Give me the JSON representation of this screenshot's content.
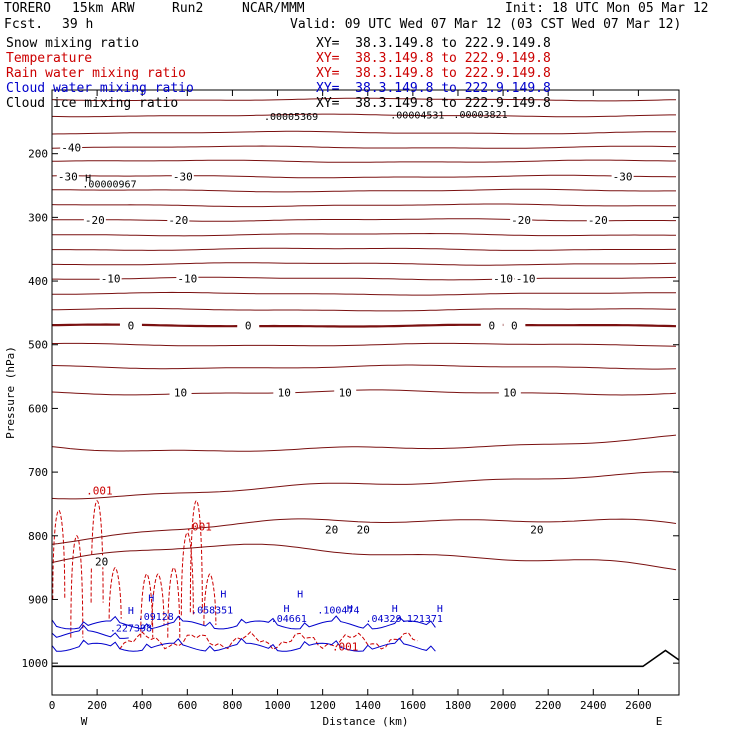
{
  "header": {
    "model": "TORERO",
    "resolution": "15km ARW",
    "run": "Run2",
    "center": "NCAR/MMM",
    "init": "Init: 18 UTC Mon 05 Mar 12",
    "fcst_label": "Fcst.",
    "fcst_value": "39 h",
    "valid": "Valid: 09 UTC Wed 07 Mar 12 (03 CST Wed 07 Mar 12)"
  },
  "fields": [
    {
      "label": "Snow mixing ratio",
      "xy": "XY=  38.3.149.8 to 222.9.149.8",
      "color": "#000000"
    },
    {
      "label": "Temperature",
      "xy": "XY=  38.3.149.8 to 222.9.149.8",
      "color": "#cc0000"
    },
    {
      "label": "Rain water mixing ratio",
      "xy": "XY=  38.3.149.8 to 222.9.149.8",
      "color": "#cc0000"
    },
    {
      "label": "Cloud water mixing ratio",
      "xy": "XY=  38.3.149.8 to 222.9.149.8",
      "color": "#0000cc"
    },
    {
      "label": "Cloud ice mixing ratio",
      "xy": "XY=  38.3.149.8 to 222.9.149.8",
      "color": "#000000"
    }
  ],
  "chart_data": {
    "type": "contour",
    "xlabel": "Distance (km)",
    "ylabel": "Pressure (hPa)",
    "x_ticks": [
      "0",
      "200",
      "400",
      "600",
      "800",
      "1000",
      "1200",
      "1400",
      "1600",
      "1800",
      "2000",
      "2200",
      "2400",
      "2600"
    ],
    "y_ticks": [
      "200",
      "300",
      "400",
      "500",
      "600",
      "700",
      "800",
      "900",
      "1000"
    ],
    "xlim": [
      0,
      2780
    ],
    "ylim_pressure": [
      1050,
      100
    ],
    "y_scale": "linear, inverted",
    "left_end_label": "W",
    "right_end_label": "E",
    "temperature_isotherms": [
      {
        "p": 115
      },
      {
        "p": 140
      },
      {
        "p": 167
      },
      {
        "p": 190,
        "labels": [
          {
            "x": 85,
            "text": "-40"
          }
        ]
      },
      {
        "p": 212
      },
      {
        "p": 236,
        "labels": [
          {
            "x": 70,
            "text": "-30"
          },
          {
            "x": 580,
            "text": "-30"
          },
          {
            "x": 2530,
            "text": "-30"
          }
        ]
      },
      {
        "p": 258
      },
      {
        "p": 281
      },
      {
        "p": 304,
        "labels": [
          {
            "x": 190,
            "text": "-20"
          },
          {
            "x": 560,
            "text": "-20"
          },
          {
            "x": 2080,
            "text": "-20"
          },
          {
            "x": 2420,
            "text": "-20"
          }
        ]
      },
      {
        "p": 327
      },
      {
        "p": 350
      },
      {
        "p": 373
      },
      {
        "p": 396,
        "labels": [
          {
            "x": 260,
            "text": "-10"
          },
          {
            "x": 600,
            "text": "-10"
          },
          {
            "x": 2000,
            "text": "-10"
          },
          {
            "x": 2100,
            "text": "-10"
          }
        ]
      },
      {
        "p": 420
      },
      {
        "p": 445
      },
      {
        "p": 470,
        "bold": true,
        "labels": [
          {
            "x": 350,
            "text": "0"
          },
          {
            "x": 870,
            "text": "0"
          },
          {
            "x": 1950,
            "text": "0"
          },
          {
            "x": 2050,
            "text": "0"
          }
        ]
      },
      {
        "p": 500
      },
      {
        "p": 535
      },
      {
        "p": 575,
        "labels": [
          {
            "x": 570,
            "text": "10"
          },
          {
            "x": 1030,
            "text": "10"
          },
          {
            "x": 1300,
            "text": "10"
          },
          {
            "x": 2030,
            "text": "10"
          }
        ]
      },
      {
        "p": 655
      },
      {
        "p": 720
      },
      {
        "p": 790,
        "labels": [
          {
            "x": 1240,
            "text": "20"
          },
          {
            "x": 1380,
            "text": "20"
          },
          {
            "x": 2150,
            "text": "20"
          }
        ]
      },
      {
        "p": 840,
        "labels": [
          {
            "x": 220,
            "text": "20"
          }
        ]
      }
    ],
    "rain_water_contour_labels": [
      {
        "x": 210,
        "p": 735,
        "text": ".001"
      },
      {
        "x": 650,
        "p": 792,
        "text": ".001"
      },
      {
        "x": 1300,
        "p": 980,
        "text": ".001"
      }
    ],
    "cloud_water_labels": [
      {
        "x": 350,
        "p": 950,
        "text": ".227398"
      },
      {
        "x": 460,
        "p": 932,
        "text": ".09128"
      },
      {
        "x": 710,
        "p": 922,
        "text": ".058351"
      },
      {
        "x": 1050,
        "p": 935,
        "text": ".04661"
      },
      {
        "x": 1270,
        "p": 922,
        "text": ".100474"
      },
      {
        "x": 1470,
        "p": 935,
        "text": ".04329"
      },
      {
        "x": 1640,
        "p": 935,
        "text": ".121371"
      }
    ],
    "snow_labels": [
      {
        "x": 255,
        "p": 253,
        "text": ".00000967"
      }
    ],
    "top_labels": [
      {
        "x": 1060,
        "p": 147,
        "text": ".00005369"
      },
      {
        "x": 1620,
        "p": 145,
        "text": ".00004531"
      },
      {
        "x": 1900,
        "p": 144,
        "text": ".00003821"
      }
    ],
    "high_markers": [
      {
        "x": 160,
        "p": 244,
        "text": "H"
      },
      {
        "x": 350,
        "p": 923,
        "text": "H"
      },
      {
        "x": 440,
        "p": 903,
        "text": "H"
      },
      {
        "x": 760,
        "p": 897,
        "text": "H"
      },
      {
        "x": 1100,
        "p": 897,
        "text": "H"
      },
      {
        "x": 1040,
        "p": 920,
        "text": "H"
      },
      {
        "x": 1320,
        "p": 920,
        "text": "H"
      },
      {
        "x": 1520,
        "p": 920,
        "text": "H"
      },
      {
        "x": 1720,
        "p": 920,
        "text": "H"
      }
    ]
  }
}
